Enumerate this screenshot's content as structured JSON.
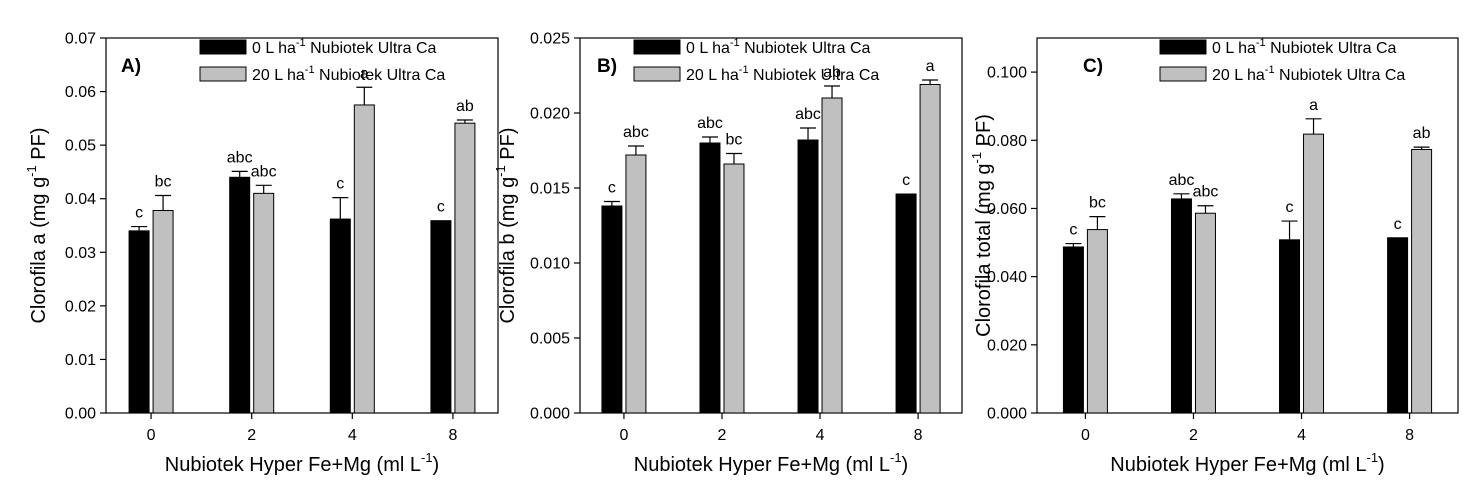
{
  "legend": {
    "series": [
      {
        "base": "0 L ha",
        "exp": "-1",
        "rest": " Nubiotek Ultra Ca",
        "color": "#000000"
      },
      {
        "base": "20 L ha",
        "exp": "-1",
        "rest": " Nubiotek Ultra Ca",
        "color": "#c0c0c0"
      }
    ]
  },
  "chart_data": [
    {
      "panel": "A)",
      "type": "bar",
      "categories": [
        "0",
        "2",
        "4",
        "8"
      ],
      "x_tick_labels": [
        "0",
        "2",
        "4",
        "8"
      ],
      "xlabel": {
        "base": "Nubiotek Hyper Fe+Mg (ml L",
        "exp": "-1",
        "tail": ")"
      },
      "ylabel": {
        "base": "Clorofila a (mg g",
        "exp": "-1",
        "tail": " PF)"
      },
      "ylim": [
        0,
        0.07
      ],
      "yticks": [
        0,
        0.01,
        0.02,
        0.03,
        0.04,
        0.05,
        0.06,
        0.07
      ],
      "ytick_labels": [
        "0.00",
        "0.01",
        "0.02",
        "0.03",
        "0.04",
        "0.05",
        "0.06",
        "0.07"
      ],
      "series": [
        {
          "name": "0 L ha-1 Nubiotek Ultra Ca",
          "color": "#000000",
          "values": [
            0.034,
            0.044,
            0.0362,
            0.0359
          ],
          "errors": [
            0.0008,
            0.0011,
            0.004,
            0.0
          ],
          "labels": [
            "c",
            "abc",
            "c",
            "c"
          ]
        },
        {
          "name": "20 L ha-1 Nubiotek Ultra Ca",
          "color": "#c0c0c0",
          "values": [
            0.0378,
            0.041,
            0.0575,
            0.0541
          ],
          "errors": [
            0.0028,
            0.0015,
            0.0033,
            0.0006
          ],
          "labels": [
            "bc",
            "abc",
            "a",
            "ab"
          ]
        }
      ],
      "grid": false,
      "legend_position": "top-right"
    },
    {
      "panel": "B)",
      "type": "bar",
      "categories": [
        "0",
        "2",
        "4",
        "8"
      ],
      "x_tick_labels": [
        "0",
        "2",
        "4",
        "8"
      ],
      "xlabel": {
        "base": "Nubiotek Hyper Fe+Mg (ml L",
        "exp": "-1",
        "tail": ")"
      },
      "ylabel": {
        "base": "Clorofila b (mg g",
        "exp": "-1",
        "tail": " PF)"
      },
      "ylim": [
        0,
        0.025
      ],
      "yticks": [
        0,
        0.005,
        0.01,
        0.015,
        0.02,
        0.025
      ],
      "ytick_labels": [
        "0.000",
        "0.005",
        "0.010",
        "0.015",
        "0.020",
        "0.025"
      ],
      "series": [
        {
          "name": "0 L ha-1 Nubiotek Ultra Ca",
          "color": "#000000",
          "values": [
            0.0138,
            0.018,
            0.0182,
            0.0146
          ],
          "errors": [
            0.0003,
            0.0004,
            0.0008,
            0.0
          ],
          "labels": [
            "c",
            "abc",
            "abc",
            "c"
          ]
        },
        {
          "name": "20 L ha-1 Nubiotek Ultra Ca",
          "color": "#c0c0c0",
          "values": [
            0.0172,
            0.0166,
            0.021,
            0.0219
          ],
          "errors": [
            0.0006,
            0.0007,
            0.0008,
            0.0003
          ],
          "labels": [
            "abc",
            "bc",
            "ab",
            "a"
          ]
        }
      ],
      "grid": false,
      "legend_position": "top-right"
    },
    {
      "panel": "C)",
      "type": "bar",
      "categories": [
        "0",
        "2",
        "4",
        "8"
      ],
      "x_tick_labels": [
        "0",
        "2",
        "4",
        "8"
      ],
      "xlabel": {
        "base": "Nubiotek Hyper Fe+Mg (ml L",
        "exp": "-1",
        "tail": ")"
      },
      "ylabel": {
        "base": "Clorofila total (mg g",
        "exp": "-1",
        "tail": " PF)"
      },
      "ylim": [
        0,
        0.11
      ],
      "yticks": [
        0,
        0.02,
        0.04,
        0.06,
        0.08,
        0.1
      ],
      "ytick_labels": [
        "0.000",
        "0.020",
        "0.040",
        "0.060",
        "0.080",
        "0.100"
      ],
      "series": [
        {
          "name": "0 L ha-1 Nubiotek Ultra Ca",
          "color": "#000000",
          "values": [
            0.0487,
            0.0628,
            0.0508,
            0.0514
          ],
          "errors": [
            0.001,
            0.0015,
            0.0055,
            0.0
          ],
          "labels": [
            "c",
            "abc",
            "c",
            "c"
          ]
        },
        {
          "name": "20 L ha-1 Nubiotek Ultra Ca",
          "color": "#c0c0c0",
          "values": [
            0.0538,
            0.0586,
            0.0818,
            0.0773
          ],
          "errors": [
            0.0038,
            0.0022,
            0.0045,
            0.0007
          ],
          "labels": [
            "bc",
            "abc",
            "a",
            "ab"
          ]
        }
      ],
      "grid": false,
      "legend_position": "top-right"
    }
  ]
}
